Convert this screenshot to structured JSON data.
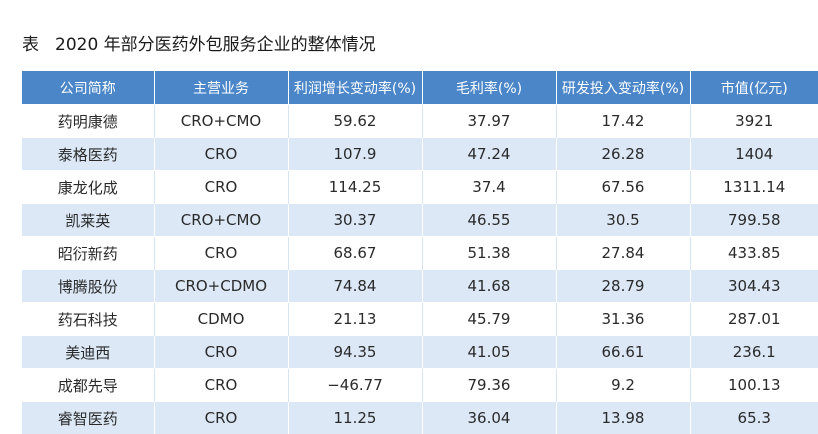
{
  "caption": {
    "label": "表",
    "title": "2020 年部分医药外包服务企业的整体情况"
  },
  "table": {
    "headers": [
      "公司简称",
      "主营业务",
      "利润增长变动率(%)",
      "毛利率(%)",
      "研发投入变动率(%)",
      "市值(亿元)"
    ],
    "rows": [
      [
        "药明康德",
        "CRO+CMO",
        "59.62",
        "37.97",
        "17.42",
        "3921"
      ],
      [
        "泰格医药",
        "CRO",
        "107.9",
        "47.24",
        "26.28",
        "1404"
      ],
      [
        "康龙化成",
        "CRO",
        "114.25",
        "37.4",
        "67.56",
        "1311.14"
      ],
      [
        "凯莱英",
        "CRO+CMO",
        "30.37",
        "46.55",
        "30.5",
        "799.58"
      ],
      [
        "昭衍新药",
        "CRO",
        "68.67",
        "51.38",
        "27.84",
        "433.85"
      ],
      [
        "博腾股份",
        "CRO+CDMO",
        "74.84",
        "41.68",
        "28.79",
        "304.43"
      ],
      [
        "药石科技",
        "CDMO",
        "21.13",
        "45.79",
        "31.36",
        "287.01"
      ],
      [
        "美迪西",
        "CRO",
        "94.35",
        "41.05",
        "66.61",
        "236.1"
      ],
      [
        "成都先导",
        "CRO",
        "−46.77",
        "79.36",
        "9.2",
        "100.13"
      ],
      [
        "睿智医药",
        "CRO",
        "11.25",
        "36.04",
        "13.98",
        "65.3"
      ]
    ]
  }
}
